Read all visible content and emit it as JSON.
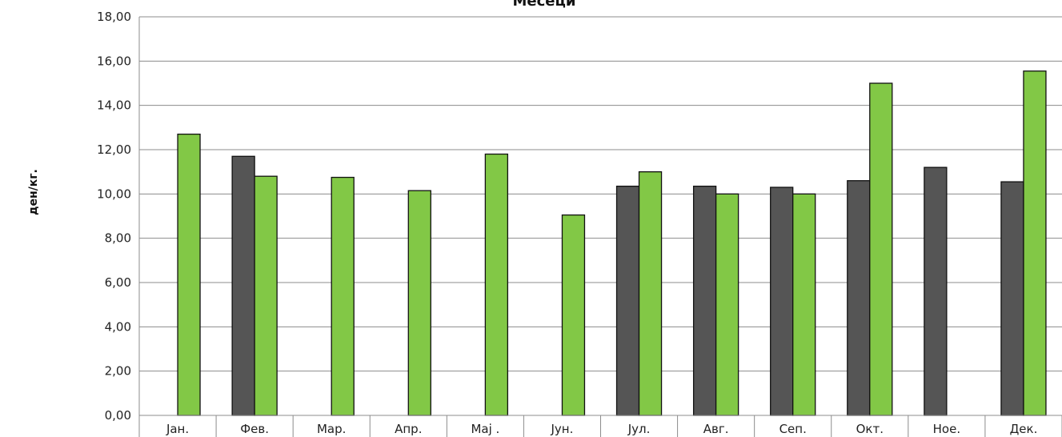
{
  "chart_data": {
    "type": "bar",
    "title": "Месеци",
    "xlabel": "",
    "ylabel": "ден/кг.",
    "ylim": [
      0,
      18
    ],
    "yticks": [
      "0,00",
      "2,00",
      "4,00",
      "6,00",
      "8,00",
      "10,00",
      "12,00",
      "14,00",
      "16,00",
      "18,00"
    ],
    "categories": [
      "Јан.",
      "Фев.",
      "Мар.",
      "Апр.",
      "Мај .",
      "Јун.",
      "Јул.",
      "Авг.",
      "Сеп.",
      "Окт.",
      "Ное.",
      "Дек."
    ],
    "grid": true,
    "series": [
      {
        "color": "#555555",
        "values": [
          null,
          11.7,
          null,
          null,
          null,
          null,
          10.35,
          10.35,
          10.3,
          10.6,
          11.2,
          10.55
        ]
      },
      {
        "color": "#82c846",
        "values": [
          12.7,
          10.8,
          10.75,
          10.15,
          11.8,
          9.05,
          11.0,
          10.0,
          10.0,
          15.0,
          null,
          15.55
        ]
      }
    ]
  }
}
